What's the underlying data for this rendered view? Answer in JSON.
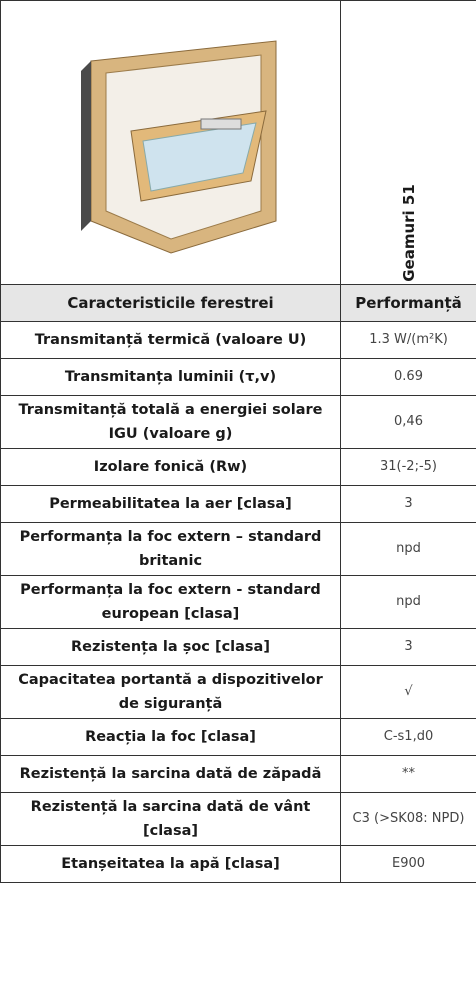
{
  "product": "Geamuri 51",
  "table": {
    "headers": [
      "Caracteristicile ferestrei",
      "Performanță"
    ],
    "rows": [
      [
        "Transmitanță termică (valoare U)",
        "1.3 W/(m²K)"
      ],
      [
        "Transmitanța luminii (τ,v)",
        "0.69"
      ],
      [
        "Transmitanță totală a energiei solare IGU (valoare g)",
        "0,46"
      ],
      [
        "Izolare fonică (Rw)",
        "31(-2;-5)"
      ],
      [
        "Permeabilitatea la aer [clasa]",
        "3"
      ],
      [
        "Performanța la foc extern – standard britanic",
        "npd"
      ],
      [
        "Performanța la foc extern - standard european [clasa]",
        "npd"
      ],
      [
        "Rezistența la șoc [clasa]",
        "3"
      ],
      [
        "Capacitatea portantă a dispozitivelor de siguranță",
        "√"
      ],
      [
        "Reacția la foc [clasa]",
        "C-s1,d0"
      ],
      [
        "Rezistență la sarcina dată de zăpadă",
        "**"
      ],
      [
        "Rezistență la sarcina dată de vânt [clasa]",
        "C3 (>SK08: NPD)"
      ],
      [
        "Etanșeitatea la apă [clasa]",
        "E900"
      ]
    ]
  }
}
